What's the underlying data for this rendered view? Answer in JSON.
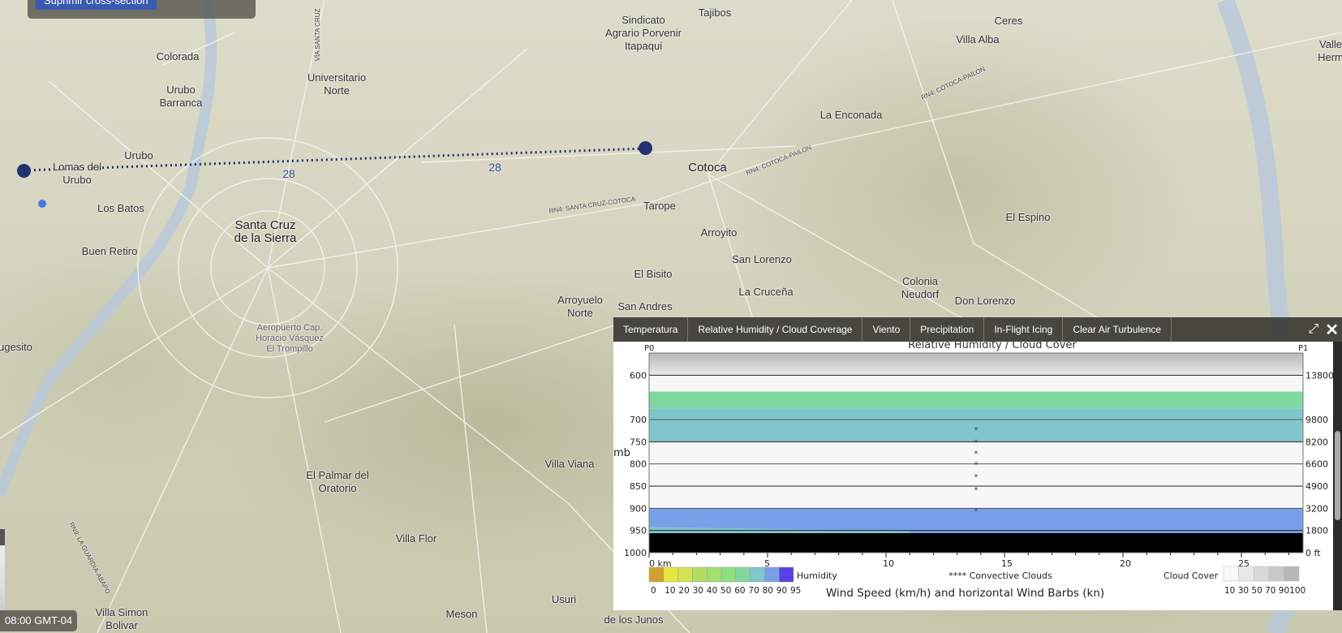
{
  "map": {
    "delete_button": "Suprimir cross-section",
    "timestamp": "08:00 GMT-04",
    "route_colors": {
      "line": "#1e2e6e",
      "marker": "#22336f",
      "location": "#4a78e0"
    },
    "places": [
      {
        "name": "Colorada"
      },
      {
        "name": "Urubo\nBarranca"
      },
      {
        "name": "Urubo"
      },
      {
        "name": "Lomas del\nUrubo"
      },
      {
        "name": "Los Batos"
      },
      {
        "name": "Buen Retiro"
      },
      {
        "name": "ugesito"
      },
      {
        "name": "Santa Cruz\nde la Sierra"
      },
      {
        "name": "Universitario\nNorte"
      },
      {
        "name": "Sindicato\nAgrario Porvenir\nItapaqui"
      },
      {
        "name": "Tajibos"
      },
      {
        "name": "Ceres"
      },
      {
        "name": "Villa Alba"
      },
      {
        "name": "La Enconada"
      },
      {
        "name": "Cotoca"
      },
      {
        "name": "Tarope"
      },
      {
        "name": "Arroyito"
      },
      {
        "name": "San Lorenzo"
      },
      {
        "name": "El Bisito"
      },
      {
        "name": "La Cruceña"
      },
      {
        "name": "Arroyuelo\nNorte"
      },
      {
        "name": "San Andres"
      },
      {
        "name": "Colonia\nNeudorf"
      },
      {
        "name": "Don Lorenzo"
      },
      {
        "name": "El Espino"
      },
      {
        "name": "Villa Viana"
      },
      {
        "name": "El Palmar del\nOratorio"
      },
      {
        "name": "Villa Flor"
      },
      {
        "name": "Usuri"
      },
      {
        "name": "de los Junos"
      },
      {
        "name": "Meson"
      },
      {
        "name": "Aeropuerto Cap.\nHoracio Vásquez\nEl Trompillo"
      },
      {
        "name": "Valle\nHerm"
      },
      {
        "name": "Villa Simon\nBolivar"
      }
    ],
    "road_labels": [
      "28",
      "28",
      "RN4: SANTA CRUZ-COTOCA",
      "RN4: COTOCA-PAILON",
      "RN4: COTOCA-PAILON",
      "VÍA SANTA CRUZ",
      "RN9: LA GUARDIA-ABAPO"
    ]
  },
  "panel": {
    "tabs": [
      "Temperatura",
      "Relative Humidity / Cloud Coverage",
      "Viento",
      "Precipitation",
      "In-Flight Icing",
      "Clear Air Turbulence"
    ],
    "active_tab": "Relative Humidity / Cloud Coverage",
    "expand_icon": "expand-icon",
    "close_icon": "close-icon"
  },
  "chart_data": {
    "type": "heatmap",
    "title": "Relative Humidity / Cloud Cover",
    "start_label": "P0",
    "end_label": "P1",
    "ylabel": "mb",
    "x_unit": "km",
    "xlim": [
      0,
      27.6
    ],
    "ylim": [
      1000,
      550
    ],
    "x_ticks": [
      "0 km",
      "5",
      "10",
      "15",
      "20",
      "25"
    ],
    "y_ticks": [
      600,
      700,
      750,
      800,
      850,
      900,
      950,
      1000
    ],
    "y_right_ticks": [
      "13800",
      "9800",
      "8200",
      "6600",
      "4900",
      "3200",
      "1800",
      "0 ft"
    ],
    "layers": [
      {
        "from_mb": 550,
        "to_mb": 600,
        "kind": "cloud cover",
        "value": "70-100"
      },
      {
        "from_mb": 600,
        "to_mb": 637,
        "kind": "humidity",
        "value": "<10"
      },
      {
        "from_mb": 637,
        "to_mb": 675,
        "kind": "humidity",
        "value": "60"
      },
      {
        "from_mb": 675,
        "to_mb": 750,
        "kind": "humidity",
        "value": "70"
      },
      {
        "from_mb": 750,
        "to_mb": 900,
        "kind": "humidity",
        "value": "<10"
      },
      {
        "from_mb": 900,
        "to_mb": 956,
        "kind": "humidity",
        "value": "80"
      },
      {
        "from_mb": 956,
        "to_mb": 1000,
        "kind": "terrain",
        "value": "ground"
      }
    ],
    "convective_clouds": {
      "x_km": 13.8,
      "levels_mb": [
        722,
        750,
        775,
        800,
        828,
        857,
        905
      ]
    },
    "legend": {
      "humidity_label": "Humidity",
      "humidity_ticks": [
        "0",
        "10",
        "20",
        "30",
        "40",
        "50",
        "60",
        "70",
        "80",
        "90",
        "95"
      ],
      "humidity_colors": [
        "#d4a030",
        "#e6e63e",
        "#d2e252",
        "#b4dc62",
        "#a2e070",
        "#8ce080",
        "#80d8a0",
        "#80c6cc",
        "#78a0e8",
        "#5840e6"
      ],
      "convective_label": "**** Convective Clouds",
      "cloud_label": "Cloud Cover",
      "cloud_ticks": "10 30 50 70 90100",
      "cloud_colors": [
        "#f8f8f8",
        "#e8e8e8",
        "#d8d8d8",
        "#c8c8c8",
        "#b8b8b8"
      ],
      "footer": "Wind Speed (km/h) and horizontal Wind Barbs (kn)"
    }
  }
}
